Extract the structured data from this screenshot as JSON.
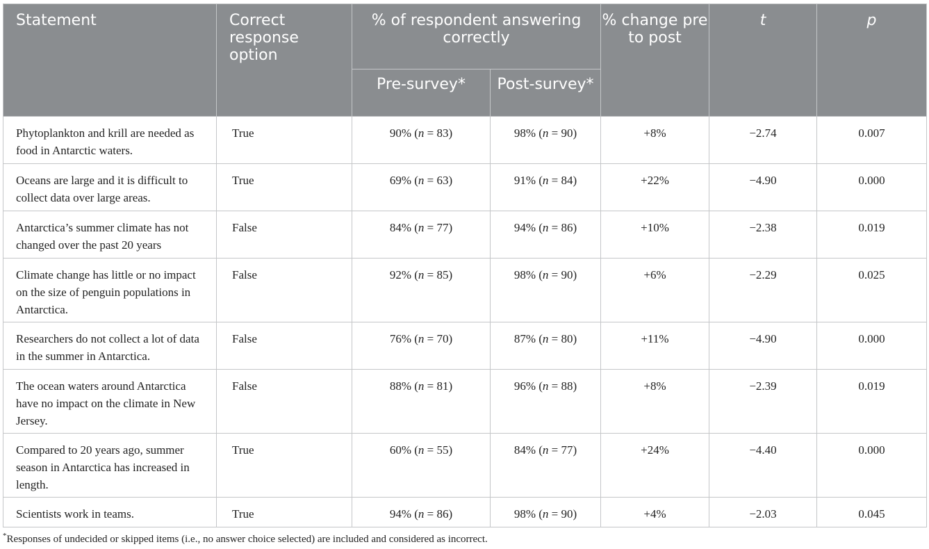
{
  "headers": {
    "statement": "Statement",
    "correct_response": "Correct response option",
    "pct_correct": "% of respondent answering correctly",
    "pre_survey": "Pre-survey*",
    "post_survey": "Post-survey*",
    "pct_change": "% change pre to post",
    "t": "t",
    "p": "p"
  },
  "rows": [
    {
      "statement": "Phytoplankton and krill are needed as food in Antarctic waters.",
      "correct": "True",
      "pre_pct": "90%",
      "pre_n": "83",
      "post_pct": "98%",
      "post_n": "90",
      "change": "+8%",
      "t": "−2.74",
      "p": "0.007"
    },
    {
      "statement": "Oceans are large and it is difficult to collect data over large areas.",
      "correct": "True",
      "pre_pct": "69%",
      "pre_n": "63",
      "post_pct": "91%",
      "post_n": "84",
      "change": "+22%",
      "t": "−4.90",
      "p": "0.000"
    },
    {
      "statement": "Antarctica’s summer climate has not changed over the past 20 years",
      "correct": "False",
      "pre_pct": "84%",
      "pre_n": "77",
      "post_pct": "94%",
      "post_n": "86",
      "change": "+10%",
      "t": "−2.38",
      "p": "0.019"
    },
    {
      "statement": "Climate change has little or no impact on the size of penguin populations in Antarctica.",
      "correct": "False",
      "pre_pct": "92%",
      "pre_n": "85",
      "post_pct": "98%",
      "post_n": "90",
      "change": "+6%",
      "t": "−2.29",
      "p": "0.025"
    },
    {
      "statement": "Researchers do not collect a lot of data in the summer in Antarctica.",
      "correct": "False",
      "pre_pct": "76%",
      "pre_n": "70",
      "post_pct": "87%",
      "post_n": "80",
      "change": "+11%",
      "t": "−4.90",
      "p": "0.000"
    },
    {
      "statement": "The ocean waters around Antarctica have no impact on the climate in New Jersey.",
      "correct": "False",
      "pre_pct": "88%",
      "pre_n": "81",
      "post_pct": "96%",
      "post_n": "88",
      "change": "+8%",
      "t": "−2.39",
      "p": "0.019"
    },
    {
      "statement": "Compared to 20 years ago, summer season in Antarctica has increased in length.",
      "correct": "True",
      "pre_pct": "60%",
      "pre_n": "55",
      "post_pct": "84%",
      "post_n": "77",
      "change": "+24%",
      "t": "−4.40",
      "p": "0.000"
    },
    {
      "statement": "Scientists work in teams.",
      "correct": "True",
      "pre_pct": "94%",
      "pre_n": "86",
      "post_pct": "98%",
      "post_n": "90",
      "change": "+4%",
      "t": "−2.03",
      "p": "0.045"
    }
  ],
  "n_label": "n",
  "footnote": {
    "marker": "*",
    "text": "Responses of undecided or skipped items (i.e., no answer choice selected) are included and considered as incorrect."
  }
}
